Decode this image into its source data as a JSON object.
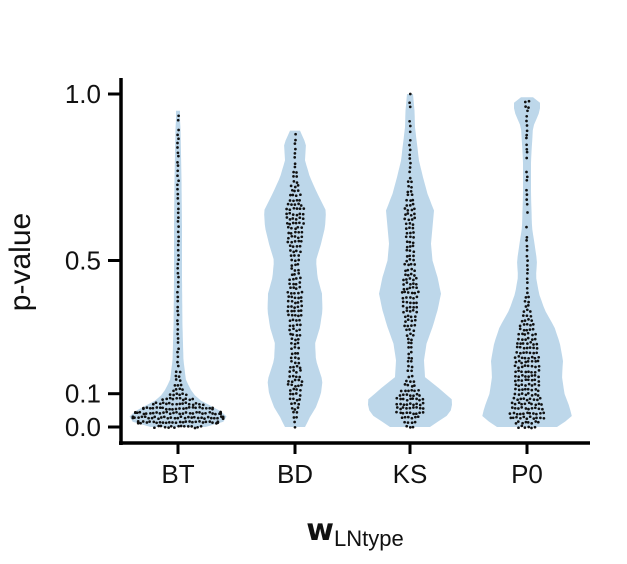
{
  "chart_data": {
    "type": "violin",
    "categories": [
      "BT",
      "BD",
      "KS",
      "P0"
    ],
    "xlabel": {
      "main": "w",
      "subscript": "LNtype"
    },
    "ylabel": "p-value",
    "ylim": [
      0,
      1
    ],
    "yticks": [
      {
        "value": 0.0,
        "label": "0.0"
      },
      {
        "value": 0.1,
        "label": "0.1"
      },
      {
        "value": 0.5,
        "label": "0.5"
      },
      {
        "value": 1.0,
        "label": "1.0"
      }
    ],
    "grid": false,
    "legend": "none",
    "colors": {
      "violin": "#bdd7ea",
      "points": "#111111",
      "axis": "#000000"
    },
    "violins": [
      {
        "category": "BT",
        "min": 0.0,
        "max": 0.95,
        "density": [
          [
            0.0,
            0.55
          ],
          [
            0.02,
            1.0
          ],
          [
            0.04,
            0.95
          ],
          [
            0.06,
            0.7
          ],
          [
            0.08,
            0.45
          ],
          [
            0.1,
            0.3
          ],
          [
            0.14,
            0.16
          ],
          [
            0.2,
            0.11
          ],
          [
            0.3,
            0.09
          ],
          [
            0.45,
            0.08
          ],
          [
            0.6,
            0.08
          ],
          [
            0.75,
            0.07
          ],
          [
            0.9,
            0.05
          ],
          [
            0.95,
            0.03
          ]
        ]
      },
      {
        "category": "BD",
        "min": 0.0,
        "max": 0.89,
        "density": [
          [
            0.0,
            0.2
          ],
          [
            0.03,
            0.3
          ],
          [
            0.06,
            0.42
          ],
          [
            0.1,
            0.52
          ],
          [
            0.14,
            0.55
          ],
          [
            0.2,
            0.42
          ],
          [
            0.25,
            0.4
          ],
          [
            0.3,
            0.5
          ],
          [
            0.35,
            0.55
          ],
          [
            0.4,
            0.54
          ],
          [
            0.45,
            0.45
          ],
          [
            0.5,
            0.42
          ],
          [
            0.55,
            0.52
          ],
          [
            0.6,
            0.6
          ],
          [
            0.65,
            0.62
          ],
          [
            0.7,
            0.45
          ],
          [
            0.75,
            0.3
          ],
          [
            0.8,
            0.2
          ],
          [
            0.85,
            0.22
          ],
          [
            0.89,
            0.1
          ]
        ]
      },
      {
        "category": "KS",
        "min": 0.0,
        "max": 1.0,
        "density": [
          [
            0.0,
            0.4
          ],
          [
            0.04,
            0.8
          ],
          [
            0.08,
            0.86
          ],
          [
            0.12,
            0.55
          ],
          [
            0.15,
            0.3
          ],
          [
            0.2,
            0.28
          ],
          [
            0.25,
            0.33
          ],
          [
            0.3,
            0.45
          ],
          [
            0.35,
            0.55
          ],
          [
            0.4,
            0.62
          ],
          [
            0.45,
            0.55
          ],
          [
            0.5,
            0.45
          ],
          [
            0.55,
            0.42
          ],
          [
            0.6,
            0.45
          ],
          [
            0.65,
            0.48
          ],
          [
            0.7,
            0.35
          ],
          [
            0.75,
            0.26
          ],
          [
            0.8,
            0.18
          ],
          [
            0.85,
            0.14
          ],
          [
            0.9,
            0.1
          ],
          [
            0.95,
            0.09
          ],
          [
            1.0,
            0.06
          ]
        ]
      },
      {
        "category": "P0",
        "min": 0.0,
        "max": 0.99,
        "density": [
          [
            0.0,
            0.6
          ],
          [
            0.03,
            0.9
          ],
          [
            0.06,
            0.85
          ],
          [
            0.1,
            0.75
          ],
          [
            0.15,
            0.7
          ],
          [
            0.2,
            0.72
          ],
          [
            0.25,
            0.66
          ],
          [
            0.3,
            0.55
          ],
          [
            0.35,
            0.36
          ],
          [
            0.4,
            0.24
          ],
          [
            0.45,
            0.18
          ],
          [
            0.5,
            0.2
          ],
          [
            0.55,
            0.15
          ],
          [
            0.6,
            0.1
          ],
          [
            0.7,
            0.08
          ],
          [
            0.8,
            0.08
          ],
          [
            0.9,
            0.12
          ],
          [
            0.95,
            0.26
          ],
          [
            0.98,
            0.26
          ],
          [
            0.99,
            0.12
          ]
        ]
      }
    ]
  }
}
